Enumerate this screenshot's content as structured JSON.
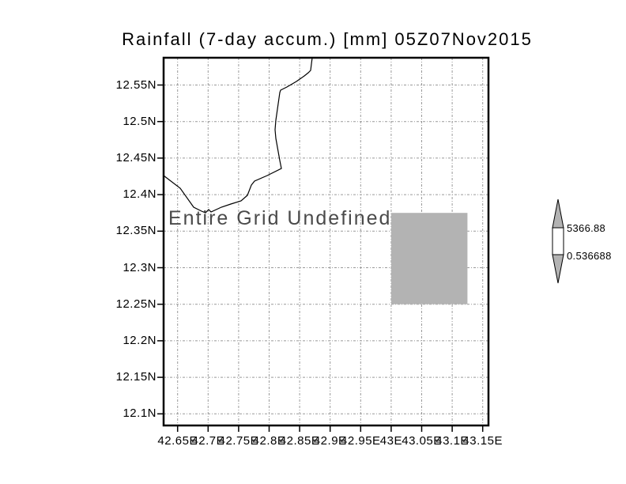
{
  "chart_data": {
    "type": "map",
    "title": "Rainfall (7-day accum.) [mm] 05Z07Nov2015",
    "annotation": "Entire Grid Undefined",
    "x_tick_labels": [
      "42.65E",
      "42.7E",
      "42.75E",
      "42.8E",
      "42.85E",
      "42.9E",
      "42.95E",
      "43E",
      "43.05E",
      "43.1E",
      "43.15E"
    ],
    "x_tick_values": [
      42.65,
      42.7,
      42.75,
      42.8,
      42.85,
      42.9,
      42.95,
      43.0,
      43.05,
      43.1,
      43.15
    ],
    "y_tick_labels": [
      "12.55N",
      "12.5N",
      "12.45N",
      "12.4N",
      "12.35N",
      "12.3N",
      "12.25N",
      "12.2N",
      "12.15N",
      "12.1N"
    ],
    "y_tick_values": [
      12.55,
      12.5,
      12.45,
      12.4,
      12.35,
      12.3,
      12.25,
      12.2,
      12.15,
      12.1
    ],
    "grid": "dotted",
    "legend_position": "right",
    "undefined_region": {
      "lon_min": 43.0,
      "lon_max": 43.125,
      "lat_min": 12.25,
      "lat_max": 12.375
    },
    "colorbar": {
      "max_label": "5366.88",
      "min_label": "0.536688"
    },
    "colors": {
      "frame": "#000000",
      "grid": "#999999",
      "coastline": "#000000",
      "undefined_fill": "#b3b3b3",
      "colorbar_triangle_fill": "#b3b3b3",
      "colorbar_bar_fill": "#ffffff",
      "annotation_text": "#4a4a4a"
    }
  }
}
